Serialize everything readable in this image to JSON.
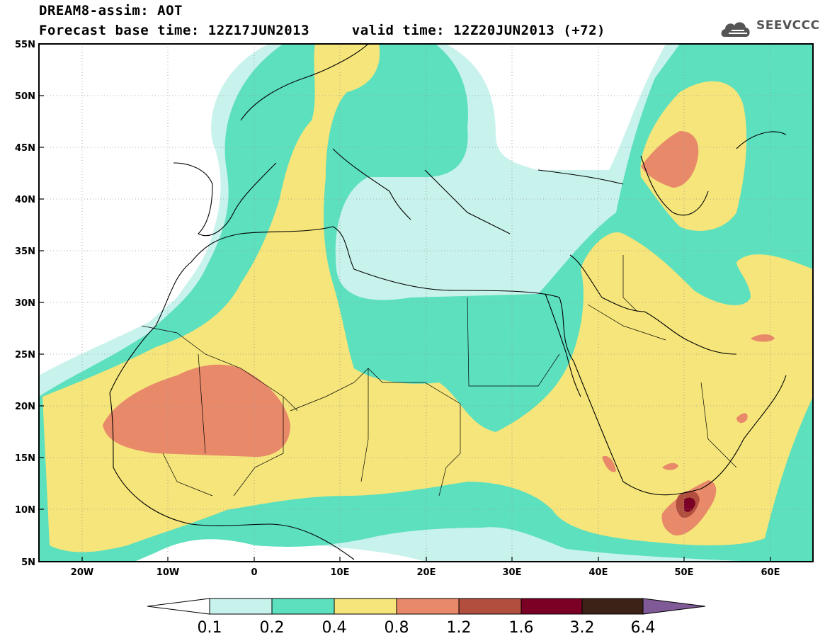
{
  "header": {
    "title": "DREAM8-assim: AOT",
    "base_label": "Forecast base time:",
    "base_time": "12Z17JUN2013",
    "valid_label": "valid time:",
    "valid_time": "12Z20JUN2013 (+72)"
  },
  "logo": {
    "text": "SEEVCCC",
    "icon": "cloud-logo-icon"
  },
  "map": {
    "lat_labels": [
      "55N",
      "50N",
      "45N",
      "40N",
      "35N",
      "30N",
      "25N",
      "20N",
      "15N",
      "10N",
      "5N"
    ],
    "lon_labels": [
      "20W",
      "10W",
      "0",
      "10E",
      "20E",
      "30E",
      "40E",
      "50E",
      "60E"
    ],
    "lat_range": [
      5,
      55
    ],
    "lon_range": [
      -25,
      65
    ],
    "grid": "dotted"
  },
  "colorbar": {
    "labels": [
      "0.1",
      "0.2",
      "0.4",
      "0.8",
      "1.2",
      "1.6",
      "3.2",
      "6.4"
    ],
    "colors": [
      "#ffffff",
      "#c8f2ec",
      "#5ce0be",
      "#f5e57a",
      "#e8896a",
      "#b14e3e",
      "#7b0026",
      "#3d2317",
      "#7f5a96"
    ]
  },
  "colors": {
    "cyan_light": "#c8f2ec",
    "teal": "#5ce0be",
    "yellow": "#f5e57a",
    "orange": "#e8896a",
    "brown": "#b14e3e",
    "maroon": "#7b0026"
  }
}
